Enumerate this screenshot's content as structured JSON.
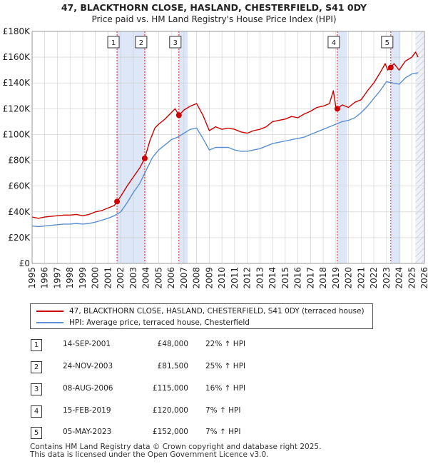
{
  "header": {
    "title": "47, BLACKTHORN CLOSE, HASLAND, CHESTERFIELD, S41 0DY",
    "subtitle": "Price paid vs. HM Land Registry's House Price Index (HPI)"
  },
  "colors": {
    "property": "#cc0000",
    "hpi": "#5b8fd1",
    "shade": "#dde7f7",
    "vline": "#dd2222",
    "grid": "#cccccc"
  },
  "chart_data": {
    "type": "line",
    "title": "Price paid vs. HM Land Registry's House Price Index (HPI)",
    "xlabel": "",
    "ylabel": "",
    "xlim": [
      1995,
      2026
    ],
    "ylim": [
      0,
      180000
    ],
    "grid": true,
    "x_ticks": [
      1995,
      1996,
      1997,
      1998,
      1999,
      2000,
      2001,
      2002,
      2003,
      2004,
      2005,
      2006,
      2007,
      2008,
      2009,
      2010,
      2011,
      2012,
      2013,
      2014,
      2015,
      2016,
      2017,
      2018,
      2019,
      2020,
      2021,
      2022,
      2023,
      2024,
      2025,
      2026
    ],
    "y_ticks": [
      0,
      20000,
      40000,
      60000,
      80000,
      100000,
      120000,
      140000,
      160000,
      180000
    ],
    "y_tick_labels": [
      "£0",
      "£20K",
      "£40K",
      "£60K",
      "£80K",
      "£100K",
      "£120K",
      "£140K",
      "£160K",
      "£180K"
    ],
    "series": [
      {
        "name": "47, BLACKTHORN CLOSE, HASLAND, CHESTERFIELD, S41 0DY (terraced house)",
        "color": "#cc0000",
        "x": [
          1995.0,
          1995.5,
          1996.0,
          1996.5,
          1997.0,
          1997.5,
          1998.0,
          1998.5,
          1999.0,
          1999.5,
          2000.0,
          2000.5,
          2001.0,
          2001.5,
          2001.71,
          2002.0,
          2002.5,
          2003.0,
          2003.5,
          2003.9,
          2004.3,
          2004.7,
          2005.0,
          2005.5,
          2006.0,
          2006.3,
          2006.6,
          2007.0,
          2007.5,
          2008.0,
          2008.5,
          2009.0,
          2009.5,
          2010.0,
          2010.5,
          2011.0,
          2011.5,
          2012.0,
          2012.5,
          2013.0,
          2013.5,
          2014.0,
          2014.5,
          2015.0,
          2015.5,
          2016.0,
          2016.5,
          2017.0,
          2017.5,
          2018.0,
          2018.5,
          2018.8,
          2019.0,
          2019.12,
          2019.5,
          2020.0,
          2020.5,
          2021.0,
          2021.5,
          2022.0,
          2022.5,
          2022.9,
          2023.1,
          2023.34,
          2023.6,
          2024.0,
          2024.5,
          2025.0,
          2025.3,
          2025.5
        ],
        "values": [
          36000,
          35000,
          36000,
          36500,
          37000,
          37500,
          37500,
          38000,
          37000,
          38000,
          40000,
          41000,
          43000,
          45000,
          48000,
          52000,
          60000,
          67000,
          74000,
          81500,
          95000,
          105000,
          108000,
          112000,
          117000,
          120000,
          115000,
          119000,
          122000,
          124000,
          115000,
          103000,
          106000,
          104000,
          105000,
          104000,
          102000,
          101000,
          103000,
          104000,
          106000,
          110000,
          111000,
          112000,
          114000,
          113000,
          116000,
          118000,
          121000,
          122000,
          124000,
          134000,
          121000,
          120000,
          123000,
          121000,
          125000,
          127000,
          134000,
          140000,
          148000,
          155000,
          150000,
          152000,
          155000,
          150000,
          157000,
          160000,
          164000,
          160000
        ]
      },
      {
        "name": "HPI: Average price, terraced house, Chesterfield",
        "color": "#5b8fd1",
        "x": [
          1995.0,
          1995.5,
          1996.0,
          1996.5,
          1997.0,
          1997.5,
          1998.0,
          1998.5,
          1999.0,
          1999.5,
          2000.0,
          2000.5,
          2001.0,
          2001.5,
          2002.0,
          2002.5,
          2003.0,
          2003.5,
          2004.0,
          2004.5,
          2005.0,
          2005.5,
          2006.0,
          2006.5,
          2007.0,
          2007.5,
          2008.0,
          2008.5,
          2009.0,
          2009.5,
          2010.0,
          2010.5,
          2011.0,
          2011.5,
          2012.0,
          2012.5,
          2013.0,
          2013.5,
          2014.0,
          2014.5,
          2015.0,
          2015.5,
          2016.0,
          2016.5,
          2017.0,
          2017.5,
          2018.0,
          2018.5,
          2019.0,
          2019.5,
          2020.0,
          2020.5,
          2021.0,
          2021.5,
          2022.0,
          2022.5,
          2023.0,
          2023.5,
          2024.0,
          2024.5,
          2025.0,
          2025.5
        ],
        "values": [
          29000,
          28500,
          29000,
          29500,
          30000,
          30500,
          30500,
          31000,
          30500,
          31000,
          32000,
          33500,
          35000,
          37000,
          40000,
          47000,
          55000,
          62000,
          72000,
          82000,
          88000,
          92000,
          96000,
          98000,
          101000,
          104000,
          105000,
          97000,
          88000,
          90000,
          90000,
          90000,
          88000,
          87000,
          87000,
          88000,
          89000,
          91000,
          93000,
          94000,
          95000,
          96000,
          97000,
          98000,
          100000,
          102000,
          104000,
          106000,
          108000,
          110000,
          111000,
          113000,
          117000,
          122000,
          128000,
          134000,
          141000,
          140000,
          139000,
          144000,
          147000,
          148000
        ]
      }
    ],
    "annotations": [
      {
        "label": "1",
        "x": 2001.71,
        "date": "14-SEP-2001",
        "price": 48000,
        "price_text": "£48,000",
        "hpi_text": "22% ↑ HPI"
      },
      {
        "label": "2",
        "x": 2003.9,
        "date": "24-NOV-2003",
        "price": 81500,
        "price_text": "£81,500",
        "hpi_text": "25% ↑ HPI"
      },
      {
        "label": "3",
        "x": 2006.6,
        "date": "08-AUG-2006",
        "price": 115000,
        "price_text": "£115,000",
        "hpi_text": "16% ↑ HPI"
      },
      {
        "label": "4",
        "x": 2019.12,
        "date": "15-FEB-2019",
        "price": 120000,
        "price_text": "£120,000",
        "hpi_text": "7% ↑ HPI"
      },
      {
        "label": "5",
        "x": 2023.34,
        "date": "05-MAY-2023",
        "price": 152000,
        "price_text": "£152,000",
        "hpi_text": "7% ↑ HPI"
      }
    ],
    "shaded_spans": [
      [
        2001.71,
        2003.9
      ],
      [
        2006.6,
        2006.6
      ],
      [
        2023.34,
        2023.34
      ],
      [
        2025.3,
        2026.0
      ]
    ],
    "hatch_from": 2025.3
  },
  "legend": {
    "property_label": "47, BLACKTHORN CLOSE, HASLAND, CHESTERFIELD, S41 0DY (terraced house)",
    "hpi_label": "HPI: Average price, terraced house, Chesterfield"
  },
  "footer": {
    "line1": "Contains HM Land Registry data © Crown copyright and database right 2025.",
    "line2": "This data is licensed under the Open Government Licence v3.0."
  }
}
